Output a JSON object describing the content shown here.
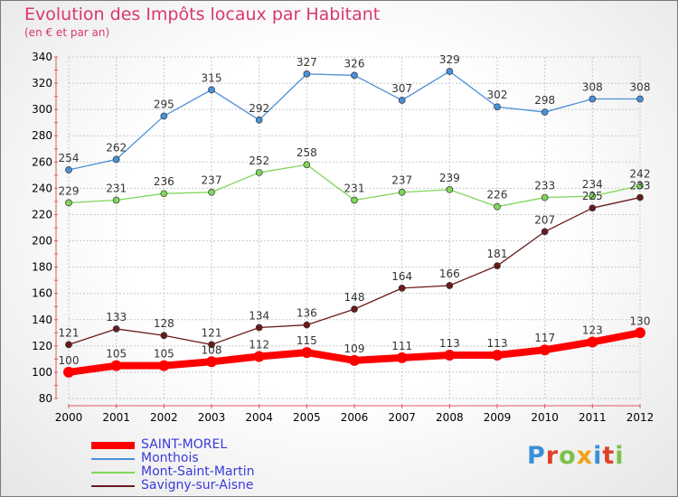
{
  "title": "Evolution des Impôts locaux par Habitant",
  "subtitle": "(en € et par an)",
  "logo": "Proxiti",
  "chart_data": {
    "type": "line",
    "x": [
      "2000",
      "2001",
      "2002",
      "2003",
      "2004",
      "2005",
      "2006",
      "2007",
      "2008",
      "2009",
      "2010",
      "2011",
      "2012"
    ],
    "ylim": [
      80,
      340
    ],
    "yticks": [
      80,
      100,
      120,
      140,
      160,
      180,
      200,
      220,
      240,
      260,
      280,
      300,
      320,
      340
    ],
    "grid": true,
    "legend_position": "bottom-left",
    "series": [
      {
        "name": "SAINT-MOREL",
        "color": "#ff0000",
        "values": [
          100,
          105,
          105,
          108,
          112,
          115,
          109,
          111,
          113,
          113,
          117,
          123,
          130
        ]
      },
      {
        "name": "Monthois",
        "color": "#4a90d9",
        "values": [
          254,
          262,
          295,
          315,
          292,
          327,
          326,
          307,
          329,
          302,
          298,
          308,
          308
        ]
      },
      {
        "name": "Mont-Saint-Martin",
        "color": "#7fd65a",
        "values": [
          229,
          231,
          236,
          237,
          252,
          258,
          231,
          237,
          239,
          226,
          233,
          234,
          242
        ]
      },
      {
        "name": "Savigny-sur-Aisne",
        "color": "#6b1a1a",
        "values": [
          121,
          133,
          128,
          121,
          134,
          136,
          148,
          164,
          166,
          181,
          207,
          225,
          233
        ]
      }
    ]
  }
}
